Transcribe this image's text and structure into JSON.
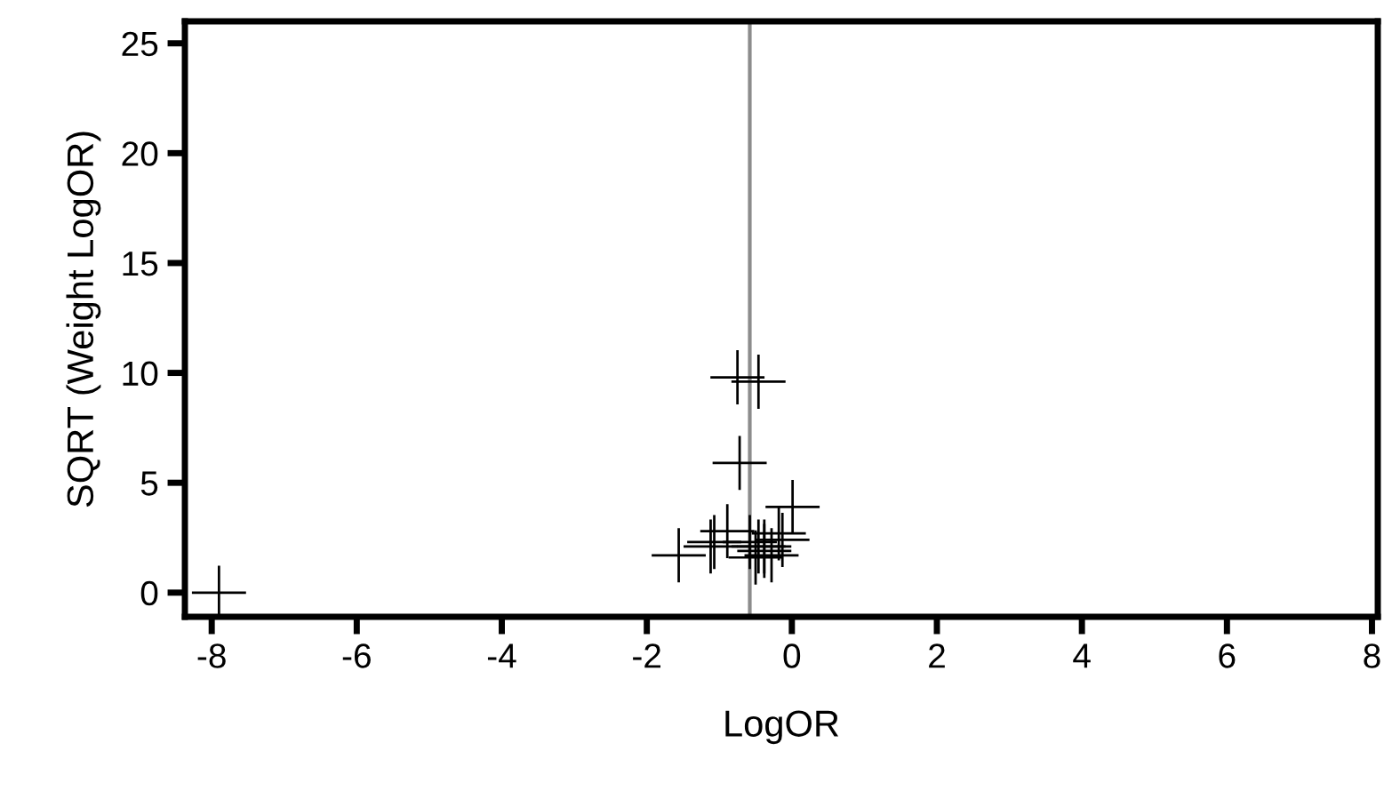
{
  "chart_data": {
    "type": "scatter",
    "xlabel": "LogOR",
    "ylabel": "SQRT (Weight LogOR)",
    "marker": "cross",
    "grid": false,
    "series": [
      {
        "color": "#000000",
        "x": [
          -7.9,
          -1.56,
          -1.12,
          -1.07,
          -0.89,
          -0.75,
          -0.72,
          -0.58,
          -0.5,
          -0.46,
          -0.46,
          -0.38,
          -0.38,
          -0.28,
          -0.18,
          -0.13,
          0.01
        ],
        "values": [
          0,
          1.7,
          2.1,
          2.3,
          2.8,
          9.8,
          5.9,
          2.3,
          1.6,
          2.1,
          9.6,
          1.9,
          2.1,
          1.7,
          2.7,
          2.4,
          3.9
        ]
      }
    ],
    "xlim": [
      -8.37,
      8.08
    ],
    "ylim": [
      -1.1,
      26
    ],
    "xticks": [
      -8,
      -6,
      -4,
      -2,
      0,
      2,
      4,
      6,
      8
    ],
    "yticks": [
      0,
      5,
      10,
      15,
      20,
      25
    ],
    "ref_lines": [
      {
        "axis": "x",
        "value": -0.58,
        "color": "#8c8c8c"
      }
    ]
  }
}
